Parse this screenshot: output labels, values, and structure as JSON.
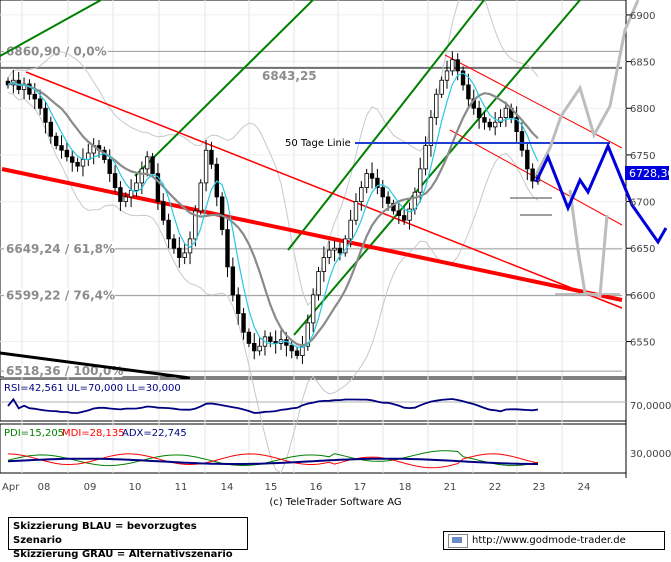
{
  "chart_data": [
    {
      "type": "candlestick",
      "title": "",
      "x_ticks": [
        "Apr",
        "08",
        "09",
        "10",
        "11",
        "14",
        "15",
        "16",
        "17",
        "18",
        "21",
        "22",
        "23",
        "24"
      ],
      "y_ticks": [
        6550,
        6600,
        6650,
        6700,
        6750,
        6800,
        6850,
        6900
      ],
      "ylim": [
        6512,
        6916
      ],
      "last_price_label": "6728,30",
      "fib_levels": [
        {
          "label": "6860,90 / 0,0%",
          "value": 6860.9
        },
        {
          "label": "6649,24 / 61,8%",
          "value": 6649.24
        },
        {
          "label": "6599,22 / 76,4%",
          "value": 6599.22
        },
        {
          "label": "6518,36 / 100,0%",
          "value": 6518.36
        }
      ],
      "level_label": "6843,25",
      "level_value": 6843.25,
      "ma_label": "50 Tage Linie",
      "ma_value": 6763,
      "close_series": [
        6825,
        6830,
        6820,
        6826,
        6815,
        6810,
        6800,
        6785,
        6770,
        6760,
        6755,
        6748,
        6742,
        6738,
        6745,
        6752,
        6760,
        6755,
        6745,
        6730,
        6715,
        6700,
        6705,
        6712,
        6720,
        6735,
        6748,
        6730,
        6700,
        6680,
        6660,
        6650,
        6640,
        6645,
        6660,
        6690,
        6720,
        6755,
        6740,
        6705,
        6670,
        6630,
        6600,
        6580,
        6560,
        6548,
        6540,
        6545,
        6555,
        6550,
        6548,
        6552,
        6546,
        6540,
        6535,
        6545,
        6570,
        6600,
        6625,
        6640,
        6648,
        6650,
        6645,
        6660,
        6680,
        6700,
        6715,
        6730,
        6725,
        6715,
        6705,
        6698,
        6690,
        6685,
        6680,
        6692,
        6710,
        6735,
        6760,
        6790,
        6815,
        6830,
        6840,
        6852,
        6840,
        6825,
        6810,
        6800,
        6790,
        6785,
        6780,
        6785,
        6790,
        6800,
        6790,
        6775,
        6755,
        6735,
        6722,
        6728
      ]
    },
    {
      "type": "line",
      "indicator": "RSI",
      "label": "RSI=42,561 UL=70,000 LL=30,000",
      "y_tick": "70,0000"
    },
    {
      "type": "line",
      "indicator": "DMI",
      "series": [
        {
          "name": "PDI=15,205",
          "color": "#008000"
        },
        {
          "name": "MDI=28,135",
          "color": "#ff0000"
        },
        {
          "name": "ADX=22,745",
          "color": "#000080"
        }
      ],
      "y_tick": "30,0000"
    }
  ],
  "footer": {
    "copyright": "(c) TeleTrader Software AG",
    "legend_blue": "Skizzierung BLAU = bevorzugtes Szenario",
    "legend_grey": "Skizzierung GRAU = Alternativszenario",
    "url": "http://www.godmode-trader.de"
  },
  "colors": {
    "fib": "#8c8c8c",
    "trend_red": "#ff0000",
    "channel_green": "#008000",
    "scenario_blue": "#0000dd",
    "scenario_grey": "#bdbdbd",
    "ma_blue": "#1f3fd0"
  }
}
